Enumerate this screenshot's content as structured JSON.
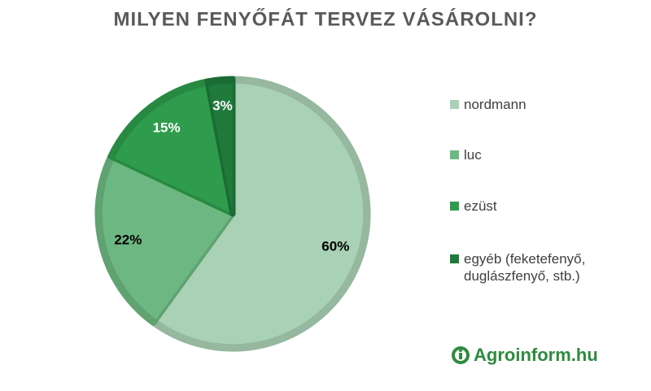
{
  "chart_data": {
    "type": "pie",
    "title": "MILYEN FENYŐFÁT TERVEZ VÁSÁROLNI?",
    "categories": [
      "nordmann",
      "luc",
      "ezüst",
      "egyéb (feketefenyő, duglászfenyő, stb.)"
    ],
    "values": [
      60,
      22,
      15,
      3
    ],
    "value_labels": [
      "60%",
      "22%",
      "15%",
      "3%"
    ],
    "colors": [
      "#a9d1b5",
      "#6db882",
      "#2e9c4c",
      "#1f7a3b"
    ],
    "legend": "right",
    "logo": "Agroinform.hu"
  }
}
